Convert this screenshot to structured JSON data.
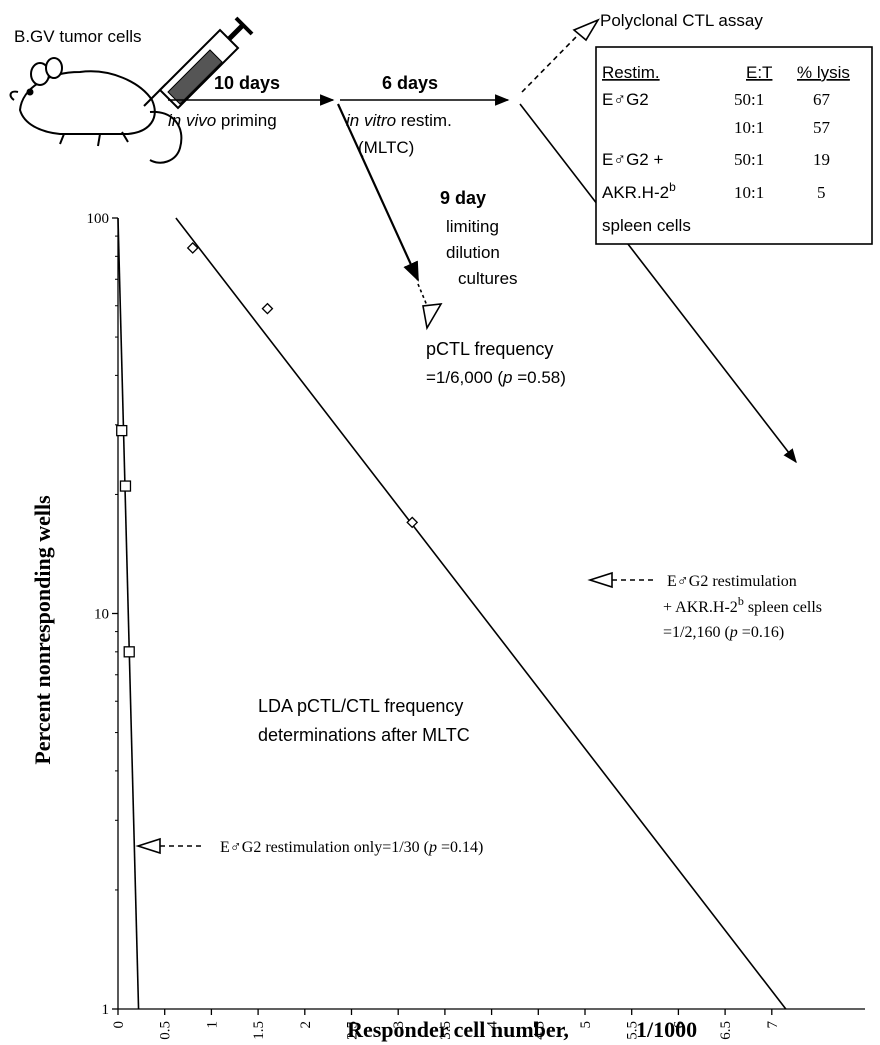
{
  "chart_data": {
    "type": "scatter",
    "xlabel": "Responder cell number,",
    "xlabel_unit": "1/1000",
    "ylabel": "Percent nonresponding wells",
    "xlim": [
      0,
      7.5
    ],
    "ylim": [
      1,
      100
    ],
    "y_log": true,
    "x_ticks": [
      "0",
      "0.5",
      "1",
      "1.5",
      "2",
      "2.5",
      "3",
      "3.5",
      "4",
      "4.5",
      "5",
      "5.5",
      "6",
      "6.5",
      "7"
    ],
    "y_ticks": [
      "1",
      "10",
      "100"
    ],
    "series": [
      {
        "marker": "square",
        "x": [
          0.04,
          0.08,
          0.12
        ],
        "y": [
          29,
          21,
          8
        ],
        "fit": {
          "x": [
            0,
            0.22
          ],
          "y": [
            100,
            1
          ]
        }
      },
      {
        "marker": "diamond",
        "x": [
          0.8,
          1.6,
          3.15
        ],
        "y": [
          84,
          59,
          17
        ],
        "fit": {
          "x": [
            0.62,
            7.15
          ],
          "y": [
            100,
            1
          ]
        }
      }
    ],
    "annotations": {
      "lda_line1": "LDA pCTL/CTL frequency",
      "lda_line2": "determinations after MLTC",
      "restim_only": "E♂G2 restimulation only=1/30 (",
      "restim_only_p": "p",
      "restim_only_p_val": " =0.14)",
      "spleen_l1": "E♂G2 restimulation",
      "spleen_l2_pre": "+ AKR.H-2",
      "spleen_l2_sup": "b",
      "spleen_l2_post": " spleen cells",
      "spleen_l3_pre": "=1/2,160 (",
      "spleen_l3_p": "p",
      "spleen_l3_post": " =0.16)",
      "pctl_l1": "pCTL frequency",
      "pctl_l2_pre": "=1/6,000  (",
      "pctl_l2_p": "p",
      "pctl_l2_post": " =0.58)"
    }
  },
  "schematic": {
    "tumor_label": "B.GV tumor cells",
    "step1_days": "10  days",
    "step1_sub_italic": "in vivo",
    "step1_sub": " priming",
    "step2_days": "6  days",
    "step2_sub_italic": "in vitro",
    "step2_sub": " restim.",
    "step2_mltc": "(MLTC)",
    "step3_days": "9  day",
    "step3_l2": "limiting",
    "step3_l3": "dilution",
    "step3_l4": "cultures",
    "assay_title": "Polyclonal CTL assay"
  },
  "assay_table": {
    "headers": [
      "Restim.",
      "E:T",
      "% lysis"
    ],
    "rows": [
      {
        "restim": "E♂G2",
        "et": "50:1",
        "lysis": "67"
      },
      {
        "restim": "",
        "et": "10:1",
        "lysis": "57"
      },
      {
        "restim": "E♂G2 +",
        "et": "50:1",
        "lysis": "19"
      },
      {
        "restim": "AKR.H-2",
        "restim_sup": "b",
        "et": "10:1",
        "lysis": "5"
      }
    ],
    "footer": "spleen  cells"
  }
}
